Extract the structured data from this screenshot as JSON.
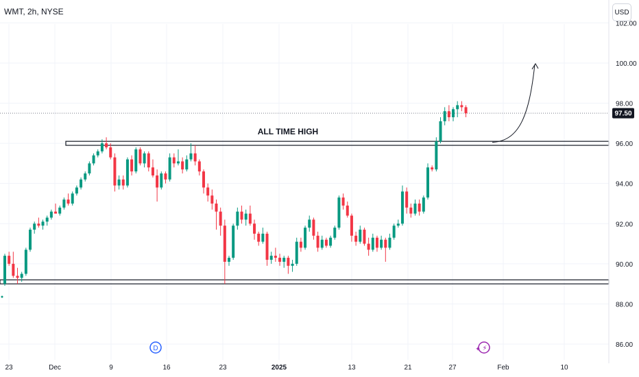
{
  "header": {
    "symbol_info": "WMT, 2h, NYSE",
    "currency_label": "USD"
  },
  "chart_data": {
    "type": "candlestick",
    "ylim": [
      85.6,
      104
    ],
    "y_ticks": [
      "86.00",
      "88.00",
      "90.00",
      "92.00",
      "94.00",
      "96.00",
      "98.00",
      "100.00",
      "102.00"
    ],
    "x_ticks": [
      "23",
      "Dec",
      "9",
      "16",
      "23",
      "2025",
      "13",
      "21",
      "27",
      "Feb",
      "10"
    ],
    "current_price": 97.5,
    "current_price_label": "97.50",
    "colors": {
      "up": "#089981",
      "down": "#f23645",
      "badge": "#131722",
      "grid": "#f0f3fa"
    },
    "annotation": {
      "text": "ALL TIME HIGH",
      "resistance": [
        95.9,
        96.1
      ],
      "support": [
        89.0,
        89.2
      ],
      "arrow_target": 100.0
    },
    "event_markers": [
      {
        "kind": "dividend",
        "symbol": "D"
      },
      {
        "kind": "earnings",
        "symbol": "⚡"
      }
    ],
    "candles": [
      [
        89.0,
        90.5,
        88.9,
        90.4
      ],
      [
        90.4,
        90.6,
        89.9,
        90.0
      ],
      [
        90.0,
        90.6,
        89.3,
        89.4
      ],
      [
        89.4,
        89.8,
        89.0,
        89.3
      ],
      [
        89.3,
        89.6,
        89.1,
        89.5
      ],
      [
        89.5,
        90.8,
        89.4,
        90.7
      ],
      [
        90.7,
        91.8,
        90.6,
        91.7
      ],
      [
        91.7,
        92.1,
        91.5,
        92.0
      ],
      [
        92.0,
        92.3,
        91.8,
        91.9
      ],
      [
        91.9,
        92.2,
        91.7,
        92.1
      ],
      [
        92.1,
        92.4,
        91.9,
        92.3
      ],
      [
        92.3,
        92.7,
        92.2,
        92.6
      ],
      [
        92.6,
        93.0,
        92.5,
        92.5
      ],
      [
        92.5,
        92.9,
        92.4,
        92.8
      ],
      [
        92.8,
        93.3,
        92.7,
        93.2
      ],
      [
        93.2,
        93.5,
        92.9,
        93.0
      ],
      [
        93.0,
        93.6,
        92.9,
        93.5
      ],
      [
        93.5,
        93.9,
        93.4,
        93.8
      ],
      [
        93.8,
        94.3,
        93.7,
        94.2
      ],
      [
        94.2,
        94.6,
        94.1,
        94.5
      ],
      [
        94.5,
        95.1,
        94.4,
        95.0
      ],
      [
        95.0,
        95.5,
        94.9,
        95.4
      ],
      [
        95.4,
        95.7,
        95.3,
        95.6
      ],
      [
        95.6,
        96.2,
        95.5,
        96.0
      ],
      [
        96.0,
        96.3,
        95.7,
        95.8
      ],
      [
        95.8,
        96.0,
        95.2,
        95.3
      ],
      [
        95.3,
        95.5,
        93.6,
        93.9
      ],
      [
        93.9,
        94.4,
        93.7,
        94.2
      ],
      [
        94.2,
        94.4,
        93.7,
        93.9
      ],
      [
        93.9,
        95.3,
        93.8,
        95.2
      ],
      [
        95.2,
        95.4,
        94.4,
        94.6
      ],
      [
        94.6,
        95.8,
        94.5,
        95.7
      ],
      [
        95.7,
        95.8,
        94.9,
        95.0
      ],
      [
        95.0,
        95.6,
        94.8,
        95.5
      ],
      [
        95.5,
        95.6,
        94.6,
        94.8
      ],
      [
        94.8,
        95.2,
        94.3,
        94.4
      ],
      [
        94.4,
        94.7,
        93.1,
        93.8
      ],
      [
        93.8,
        94.6,
        93.7,
        94.5
      ],
      [
        94.5,
        94.6,
        94.0,
        94.2
      ],
      [
        94.2,
        95.5,
        94.1,
        95.3
      ],
      [
        95.3,
        95.5,
        94.8,
        95.0
      ],
      [
        95.0,
        95.7,
        94.9,
        95.1
      ],
      [
        95.1,
        95.3,
        94.5,
        94.7
      ],
      [
        94.7,
        95.4,
        94.6,
        95.2
      ],
      [
        95.2,
        96.0,
        95.1,
        95.5
      ],
      [
        95.5,
        95.9,
        94.9,
        95.1
      ],
      [
        95.1,
        95.2,
        94.4,
        94.6
      ],
      [
        94.6,
        94.7,
        93.5,
        93.8
      ],
      [
        93.8,
        94.0,
        93.1,
        93.4
      ],
      [
        93.4,
        93.7,
        92.7,
        93.0
      ],
      [
        93.0,
        93.2,
        91.7,
        92.6
      ],
      [
        92.6,
        92.8,
        91.4,
        91.9
      ],
      [
        91.9,
        92.2,
        89.0,
        90.1
      ],
      [
        90.1,
        90.4,
        89.9,
        90.3
      ],
      [
        90.3,
        92.0,
        90.2,
        91.9
      ],
      [
        91.9,
        92.8,
        91.7,
        92.6
      ],
      [
        92.6,
        92.9,
        92.0,
        92.2
      ],
      [
        92.2,
        92.7,
        91.9,
        92.5
      ],
      [
        92.5,
        92.9,
        91.9,
        92.0
      ],
      [
        92.0,
        92.2,
        91.2,
        91.5
      ],
      [
        91.5,
        91.6,
        90.9,
        91.1
      ],
      [
        91.1,
        91.8,
        91.0,
        91.5
      ],
      [
        91.5,
        91.6,
        89.9,
        90.2
      ],
      [
        90.2,
        90.6,
        90.0,
        90.4
      ],
      [
        90.4,
        90.8,
        90.1,
        90.3
      ],
      [
        90.3,
        90.5,
        89.9,
        90.1
      ],
      [
        90.1,
        90.4,
        89.8,
        90.3
      ],
      [
        90.3,
        90.4,
        89.5,
        89.9
      ],
      [
        89.9,
        90.2,
        89.6,
        90.0
      ],
      [
        90.0,
        91.3,
        89.9,
        91.1
      ],
      [
        91.1,
        91.3,
        90.6,
        90.8
      ],
      [
        90.8,
        91.9,
        90.7,
        91.8
      ],
      [
        91.8,
        92.4,
        91.6,
        92.2
      ],
      [
        92.2,
        92.3,
        91.2,
        91.4
      ],
      [
        91.4,
        91.6,
        90.6,
        90.8
      ],
      [
        90.8,
        91.4,
        90.7,
        91.2
      ],
      [
        91.2,
        91.3,
        90.8,
        90.9
      ],
      [
        90.9,
        91.4,
        90.8,
        91.3
      ],
      [
        91.3,
        91.9,
        91.2,
        91.8
      ],
      [
        91.8,
        93.4,
        91.7,
        93.3
      ],
      [
        93.3,
        93.5,
        92.7,
        92.9
      ],
      [
        92.9,
        93.1,
        92.3,
        92.4
      ],
      [
        92.4,
        92.5,
        91.1,
        91.4
      ],
      [
        91.4,
        91.6,
        90.9,
        91.1
      ],
      [
        91.1,
        91.9,
        91.0,
        91.7
      ],
      [
        91.7,
        91.8,
        90.9,
        91.0
      ],
      [
        91.0,
        91.3,
        90.4,
        90.7
      ],
      [
        90.7,
        91.5,
        90.6,
        91.3
      ],
      [
        91.3,
        91.4,
        90.6,
        90.8
      ],
      [
        90.8,
        91.4,
        90.7,
        91.2
      ],
      [
        91.2,
        91.3,
        90.1,
        90.8
      ],
      [
        90.8,
        91.5,
        90.7,
        91.3
      ],
      [
        91.3,
        92.0,
        91.2,
        91.9
      ],
      [
        91.9,
        92.2,
        91.8,
        92.0
      ],
      [
        92.0,
        93.9,
        91.9,
        93.6
      ],
      [
        93.6,
        93.8,
        92.5,
        92.8
      ],
      [
        92.8,
        93.0,
        92.3,
        92.5
      ],
      [
        92.5,
        93.2,
        92.4,
        93.0
      ],
      [
        93.0,
        93.2,
        92.4,
        92.6
      ],
      [
        92.6,
        93.4,
        92.5,
        93.3
      ],
      [
        93.3,
        95.0,
        93.2,
        94.8
      ],
      [
        94.8,
        94.9,
        94.6,
        94.7
      ],
      [
        94.7,
        96.3,
        94.6,
        96.1
      ],
      [
        96.1,
        97.3,
        96.0,
        97.1
      ],
      [
        97.1,
        97.8,
        96.9,
        97.6
      ],
      [
        97.6,
        97.9,
        97.1,
        97.3
      ],
      [
        97.3,
        97.8,
        97.1,
        97.7
      ],
      [
        97.7,
        98.1,
        97.3,
        97.9
      ],
      [
        97.9,
        98.1,
        97.6,
        97.8
      ],
      [
        97.8,
        97.9,
        97.3,
        97.5
      ]
    ]
  }
}
